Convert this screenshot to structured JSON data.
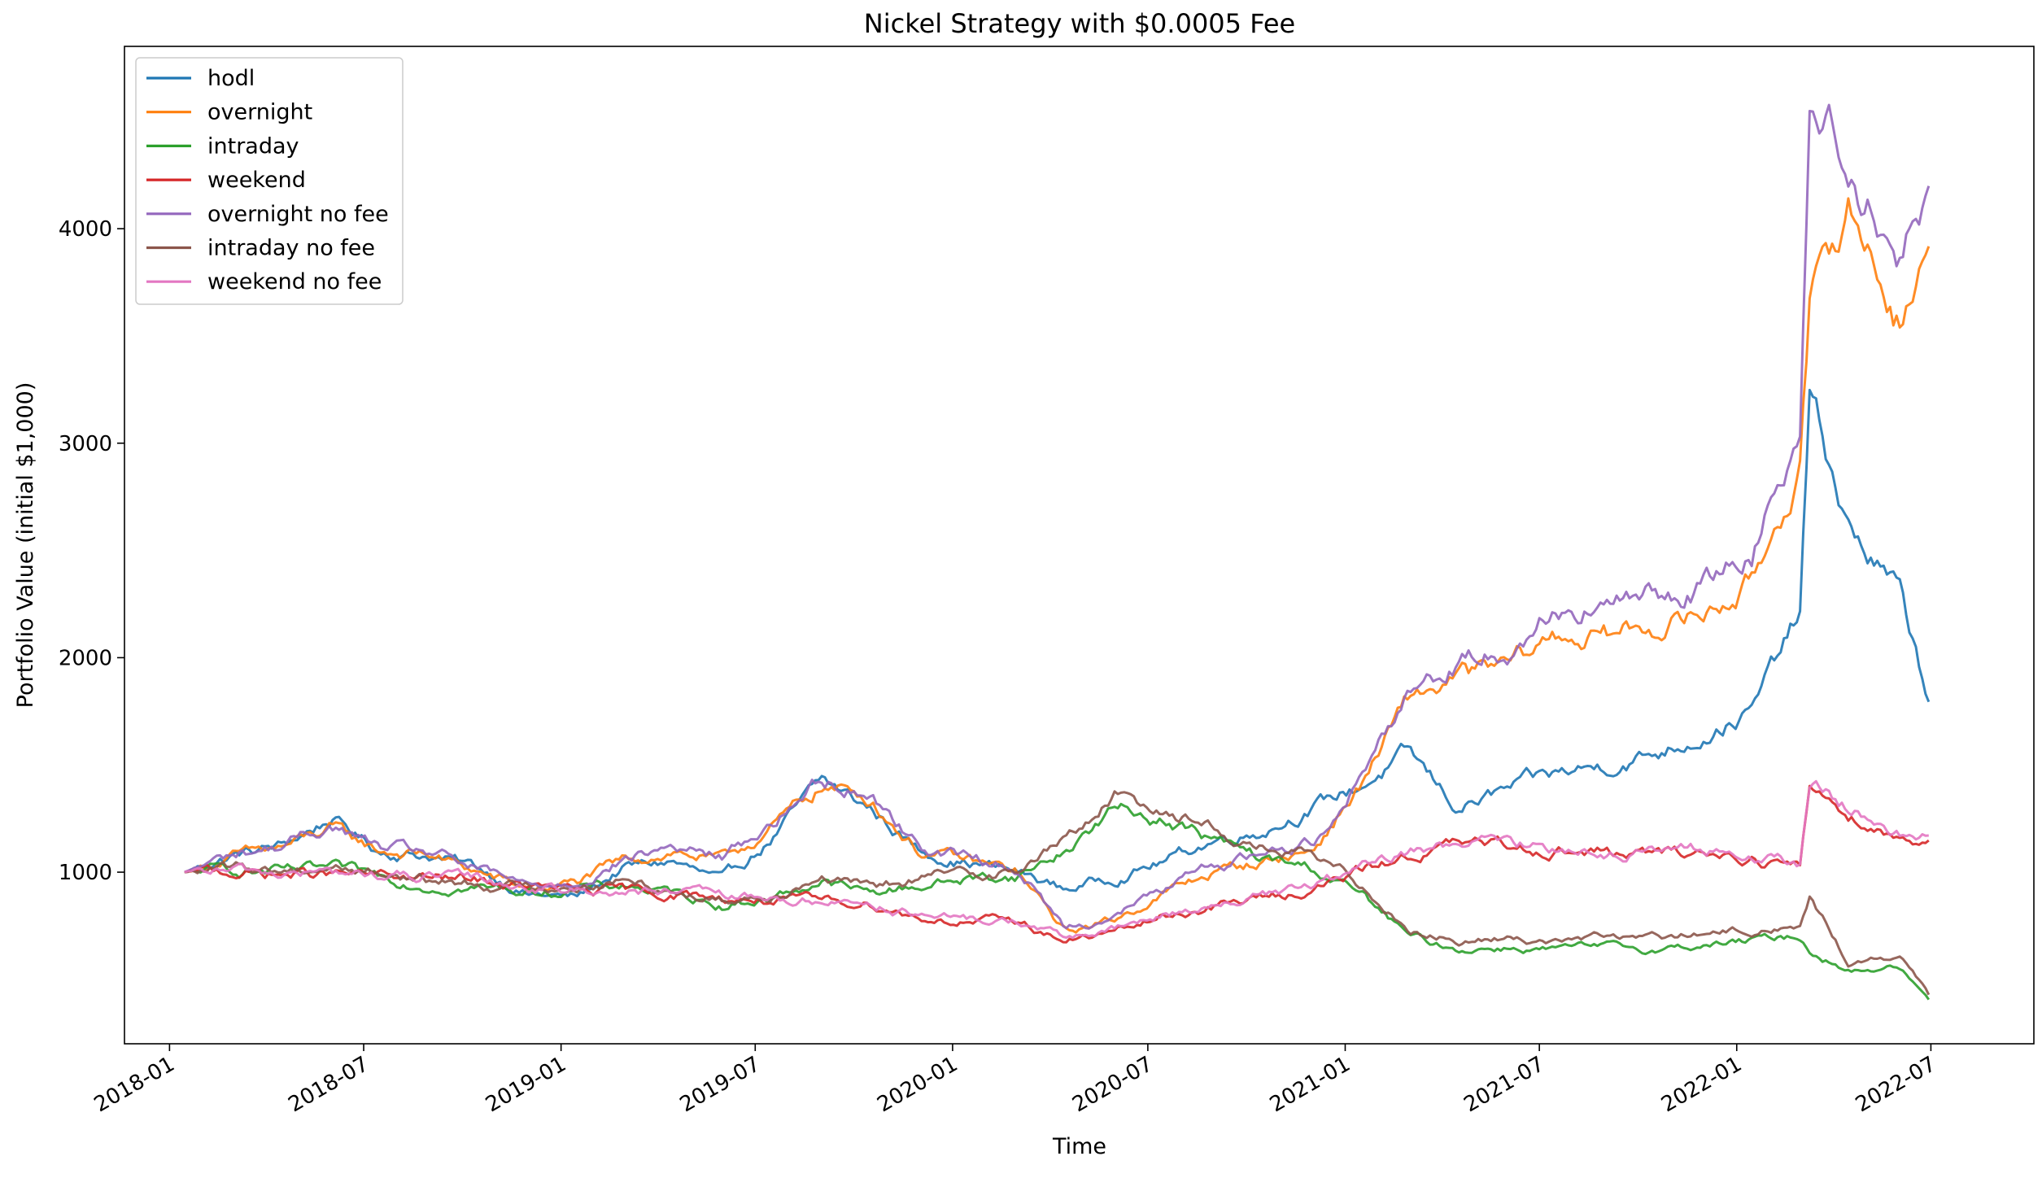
{
  "chart_data": {
    "type": "line",
    "title": "Nickel Strategy with $0.0005 Fee",
    "xlabel": "Time",
    "ylabel": "Portfolio Value (initial $1,000)",
    "x_ticks": [
      "2018-01",
      "2018-07",
      "2019-01",
      "2019-07",
      "2020-01",
      "2020-07",
      "2021-01",
      "2021-07",
      "2022-01",
      "2022-07"
    ],
    "y_ticks": [
      1000,
      2000,
      3000,
      4000
    ],
    "xlim": [
      "2017-11-20",
      "2022-10-05"
    ],
    "ylim": [
      200,
      4850
    ],
    "grid": false,
    "legend_position": "upper-left",
    "x": [
      "2018-01-15",
      "2018-03-01",
      "2018-04-15",
      "2018-06-01",
      "2018-07-15",
      "2018-09-01",
      "2018-10-15",
      "2018-12-01",
      "2019-01-15",
      "2019-03-01",
      "2019-04-15",
      "2019-06-01",
      "2019-07-15",
      "2019-09-01",
      "2019-10-15",
      "2019-12-01",
      "2020-01-15",
      "2020-03-01",
      "2020-04-15",
      "2020-06-01",
      "2020-07-15",
      "2020-09-01",
      "2020-10-15",
      "2020-12-01",
      "2021-01-15",
      "2021-03-01",
      "2021-04-15",
      "2021-06-01",
      "2021-07-15",
      "2021-09-01",
      "2021-10-15",
      "2021-12-01",
      "2022-01-15",
      "2022-03-01",
      "2022-03-10",
      "2022-04-15",
      "2022-06-01",
      "2022-06-30"
    ],
    "series": [
      {
        "name": "hodl",
        "color": "#1f77b4",
        "values": [
          1000,
          1080,
          1120,
          1250,
          1100,
          1080,
          1020,
          900,
          880,
          1020,
          1050,
          950,
          1150,
          1420,
          1300,
          1100,
          1050,
          1000,
          920,
          980,
          1050,
          1150,
          1200,
          1300,
          1400,
          1550,
          1300,
          1380,
          1450,
          1500,
          1550,
          1650,
          1750,
          2200,
          3200,
          2600,
          2300,
          1780
        ]
      },
      {
        "name": "overnight",
        "color": "#ff7f0e",
        "values": [
          1000,
          1070,
          1110,
          1200,
          1100,
          1080,
          1000,
          920,
          950,
          1050,
          1100,
          1050,
          1200,
          1400,
          1350,
          1100,
          1050,
          1000,
          720,
          780,
          900,
          1000,
          1050,
          1100,
          1400,
          1800,
          1900,
          1950,
          2100,
          2100,
          2150,
          2200,
          2350,
          2900,
          3600,
          4100,
          3600,
          3920
        ]
      },
      {
        "name": "intraday",
        "color": "#2ca02c",
        "values": [
          1000,
          1010,
          1000,
          1010,
          980,
          940,
          930,
          910,
          920,
          940,
          900,
          850,
          880,
          960,
          900,
          940,
          970,
          980,
          1100,
          1300,
          1250,
          1150,
          1060,
          1020,
          900,
          700,
          640,
          650,
          640,
          650,
          640,
          660,
          680,
          700,
          640,
          540,
          560,
          400
        ]
      },
      {
        "name": "weekend",
        "color": "#d62728",
        "values": [
          1000,
          1000,
          990,
          990,
          980,
          970,
          960,
          930,
          910,
          910,
          900,
          880,
          870,
          860,
          860,
          790,
          770,
          770,
          680,
          720,
          790,
          840,
          880,
          920,
          1000,
          1080,
          1130,
          1120,
          1110,
          1090,
          1080,
          1090,
          1070,
          1020,
          1400,
          1280,
          1160,
          1150
        ]
      },
      {
        "name": "overnight no fee",
        "color": "#9467bd",
        "values": [
          1000,
          1080,
          1120,
          1220,
          1110,
          1090,
          1010,
          930,
          960,
          1060,
          1120,
          1070,
          1220,
          1440,
          1380,
          1120,
          1070,
          1020,
          740,
          800,
          920,
          1030,
          1090,
          1140,
          1450,
          1860,
          1980,
          2050,
          2230,
          2240,
          2280,
          2340,
          2500,
          3100,
          4600,
          4350,
          3900,
          4200
        ]
      },
      {
        "name": "intraday no fee",
        "color": "#8c564b",
        "values": [
          1000,
          1015,
          1010,
          1030,
          1000,
          960,
          950,
          930,
          940,
          960,
          920,
          870,
          900,
          990,
          920,
          970,
          1000,
          1010,
          1150,
          1360,
          1300,
          1210,
          1110,
          1070,
          950,
          740,
          680,
          690,
          680,
          700,
          690,
          710,
          730,
          750,
          880,
          580,
          610,
          420
        ]
      },
      {
        "name": "weekend no fee",
        "color": "#e377c2",
        "values": [
          1000,
          1000,
          995,
          995,
          985,
          975,
          965,
          935,
          915,
          915,
          905,
          885,
          875,
          865,
          865,
          795,
          775,
          775,
          690,
          730,
          800,
          850,
          890,
          930,
          1010,
          1090,
          1140,
          1130,
          1120,
          1100,
          1090,
          1100,
          1080,
          1030,
          1420,
          1300,
          1180,
          1170
        ]
      }
    ]
  }
}
